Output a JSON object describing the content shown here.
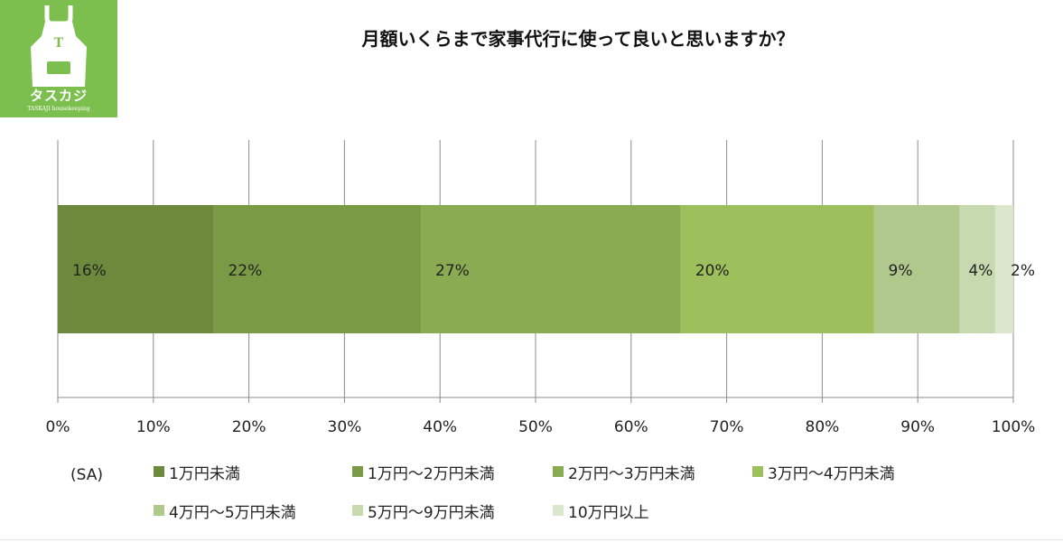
{
  "logo": {
    "letter": "T",
    "name": "タスカジ",
    "sub": "TASKAJI housekeeping",
    "color": "#7cbf4e"
  },
  "chart_data": {
    "type": "bar",
    "orientation": "horizontal",
    "stacked": true,
    "title": "月額いくらまで家事代行に使って良いと思いますか？",
    "xlim": [
      0,
      100
    ],
    "x_ticks": [
      "0%",
      "10%",
      "20%",
      "30%",
      "40%",
      "50%",
      "60%",
      "70%",
      "80%",
      "90%",
      "100%"
    ],
    "grid": true,
    "legend_position": "bottom",
    "legend_note": "(SA)",
    "series": [
      {
        "name": "1万円未満",
        "value": 16.3,
        "label": "16%",
        "color": "#6d8a3c"
      },
      {
        "name": "1万円～2万円未満",
        "value": 21.7,
        "label": "22%",
        "color": "#7a9a46"
      },
      {
        "name": "2万円～3万円未満",
        "value": 27.2,
        "label": "27%",
        "color": "#8aab52"
      },
      {
        "name": "3万円～4万円未満",
        "value": 20.2,
        "label": "20%",
        "color": "#9dbf5c"
      },
      {
        "name": "4万円～5万円未満",
        "value": 9.0,
        "label": "9%",
        "color": "#b1c88d"
      },
      {
        "name": "5万円～9万円未満",
        "value": 3.7,
        "label": "4%",
        "color": "#c7d9ae"
      },
      {
        "name": "10万円以上",
        "value": 1.9,
        "label": "2%",
        "color": "#dbe6cc"
      }
    ]
  }
}
